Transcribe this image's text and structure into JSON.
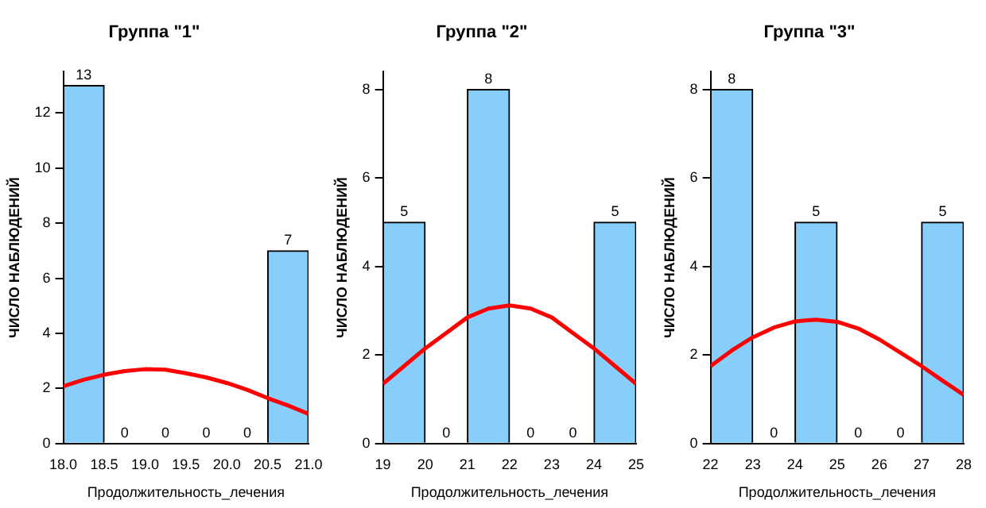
{
  "chart_data": [
    {
      "type": "histogram",
      "title": "Группа \"1\"",
      "xlabel": "Продолжительность_лечения",
      "ylabel": "ЧИСЛО НАБЛЮДЕНИЙ",
      "bins": [
        18.0,
        18.5,
        19.0,
        19.5,
        20.0,
        20.5,
        21.0
      ],
      "xlim": [
        18.0,
        21.0
      ],
      "xticks": [
        {
          "value": 18,
          "label": "18.0"
        },
        {
          "value": 18.5,
          "label": "18.5"
        },
        {
          "value": 19,
          "label": "19.0"
        },
        {
          "value": 19.5,
          "label": "19.5"
        },
        {
          "value": 20,
          "label": "20.0"
        },
        {
          "value": 20.5,
          "label": "20.5"
        },
        {
          "value": 21,
          "label": "21.0"
        }
      ],
      "ylim": [
        0,
        13.5
      ],
      "yticks": [
        0,
        2,
        4,
        6,
        8,
        10,
        12
      ],
      "grid": false,
      "legend": false,
      "series": [
        {
          "color": "#87cefa",
          "values": [
            13,
            0,
            0,
            0,
            0,
            7
          ],
          "value_labels": [
            "13",
            "0",
            "0",
            "0",
            "0",
            "7"
          ]
        },
        {
          "type": "line",
          "color": "#ff0000",
          "x": [
            18.0,
            18.25,
            18.5,
            18.75,
            19.0,
            19.25,
            19.5,
            19.75,
            20.0,
            20.25,
            20.5,
            20.75,
            21.0
          ],
          "values": [
            2.08,
            2.32,
            2.5,
            2.63,
            2.7,
            2.68,
            2.55,
            2.4,
            2.2,
            1.95,
            1.65,
            1.38,
            1.08
          ]
        }
      ]
    },
    {
      "type": "histogram",
      "title": "Группа \"2\"",
      "xlabel": "Продолжительность_лечения",
      "ylabel": "ЧИСЛО НАБЛЮДЕНИЙ",
      "bins": [
        19,
        20,
        21,
        22,
        23,
        24,
        25
      ],
      "xlim": [
        19,
        25
      ],
      "xticks": [
        19,
        20,
        21,
        22,
        23,
        24,
        25
      ],
      "ylim": [
        0,
        8.4
      ],
      "yticks": [
        0,
        2,
        4,
        6,
        8
      ],
      "grid": false,
      "legend": false,
      "series": [
        {
          "color": "#87cefa",
          "values": [
            5,
            0,
            8,
            0,
            0,
            5
          ],
          "value_labels": [
            "5",
            "0",
            "8",
            "0",
            "0",
            "5"
          ]
        },
        {
          "type": "line",
          "color": "#ff0000",
          "x": [
            19,
            19.5,
            20,
            20.5,
            21,
            21.5,
            22,
            22.5,
            23,
            23.5,
            24,
            24.5,
            25
          ],
          "values": [
            1.35,
            1.75,
            2.15,
            2.5,
            2.85,
            3.05,
            3.12,
            3.05,
            2.85,
            2.5,
            2.15,
            1.75,
            1.35
          ]
        }
      ]
    },
    {
      "type": "histogram",
      "title": "Группа \"3\"",
      "xlabel": "Продолжительность_лечения",
      "ylabel": "ЧИСЛО НАБЛЮДЕНИЙ",
      "bins": [
        22,
        23,
        24,
        25,
        26,
        27,
        28
      ],
      "xlim": [
        22,
        28
      ],
      "xticks": [
        22,
        23,
        24,
        25,
        26,
        27,
        28
      ],
      "ylim": [
        0,
        8.4
      ],
      "yticks": [
        0,
        2,
        4,
        6,
        8
      ],
      "grid": false,
      "legend": false,
      "series": [
        {
          "color": "#87cefa",
          "values": [
            8,
            0,
            5,
            0,
            0,
            5
          ],
          "value_labels": [
            "8",
            "0",
            "5",
            "0",
            "0",
            "5"
          ]
        },
        {
          "type": "line",
          "color": "#ff0000",
          "x": [
            22,
            22.5,
            23,
            23.5,
            24,
            24.5,
            25,
            25.5,
            26,
            26.5,
            27,
            27.5,
            28
          ],
          "values": [
            1.75,
            2.1,
            2.4,
            2.62,
            2.76,
            2.8,
            2.75,
            2.6,
            2.35,
            2.05,
            1.75,
            1.42,
            1.1
          ]
        }
      ]
    }
  ]
}
